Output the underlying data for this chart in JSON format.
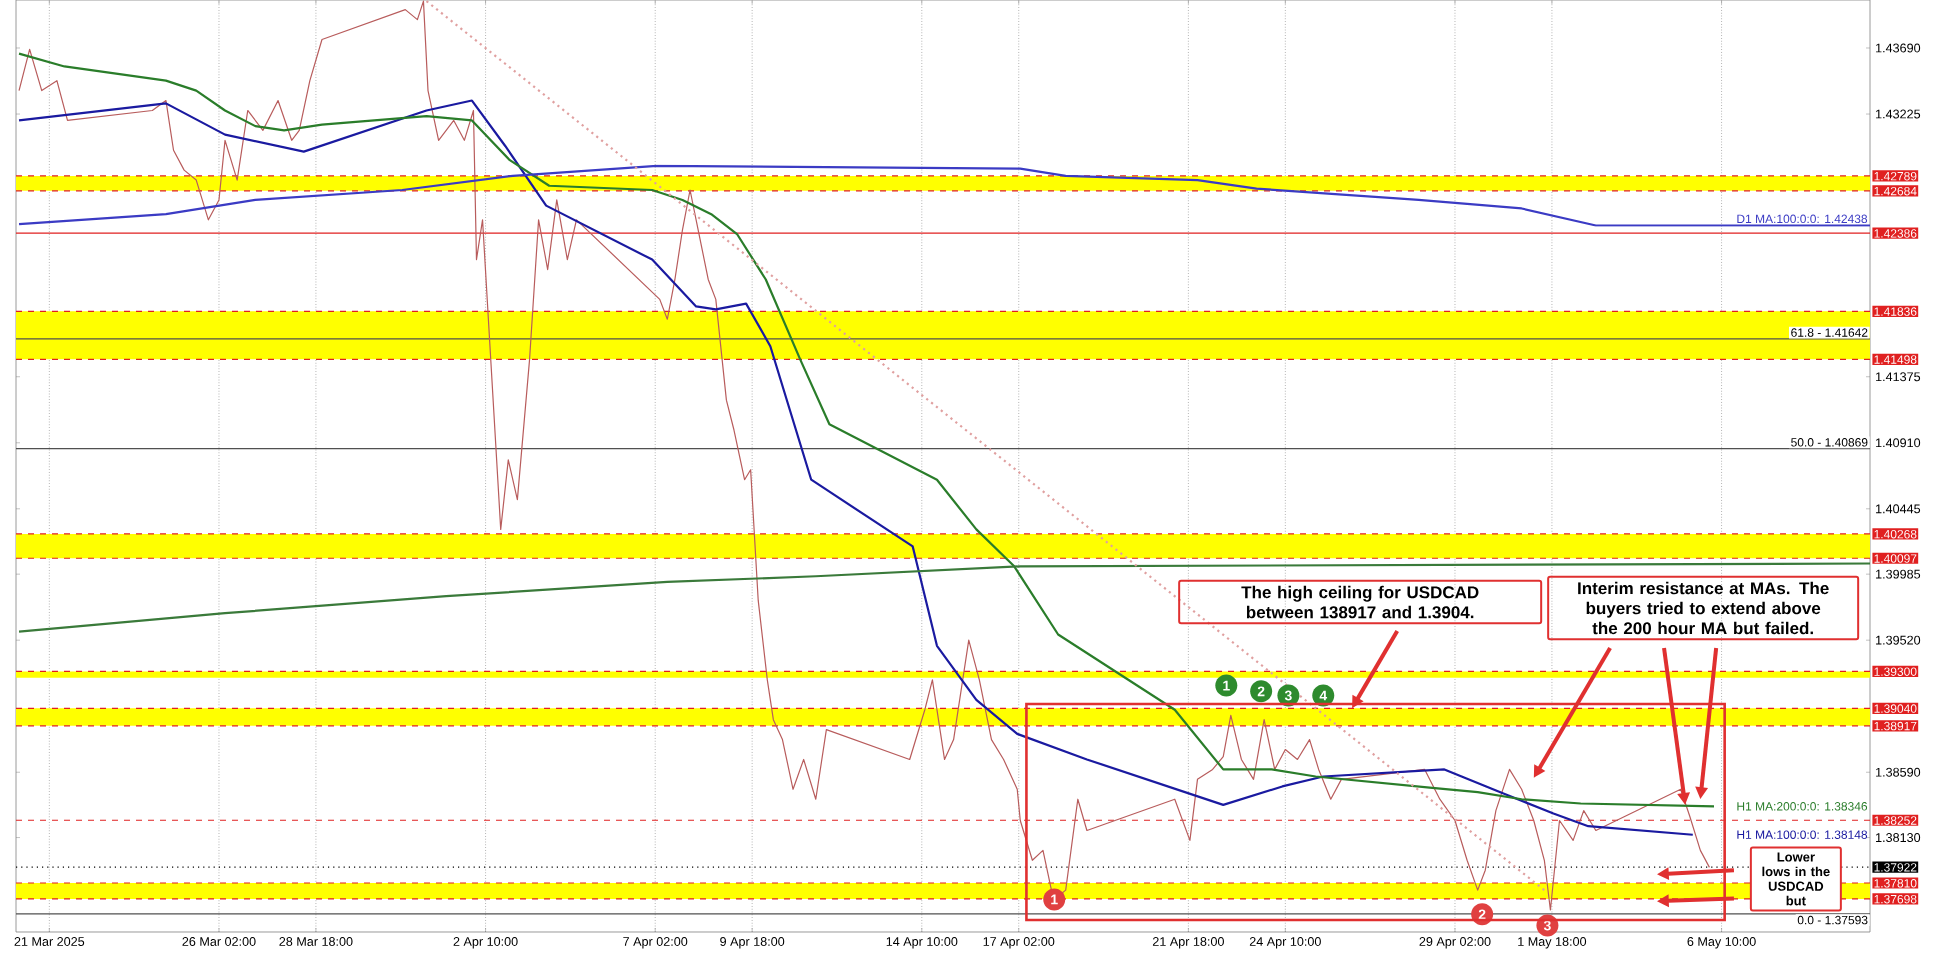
{
  "chart_data": {
    "type": "line",
    "xlim": [
      "2025-03-20T12:00",
      "2025-05-10T12:00"
    ],
    "ylim": [
      1.37465,
      1.44028
    ],
    "xticks": [
      {
        "value": "2025-03-21T10:00",
        "label": "21 Mar 2025"
      },
      {
        "value": "2025-03-26T02:00",
        "label": "26 Mar 02:00"
      },
      {
        "value": "2025-03-28T18:00",
        "label": "28 Mar 18:00"
      },
      {
        "value": "2025-04-02T10:00",
        "label": "2 Apr 10:00"
      },
      {
        "value": "2025-04-07T02:00",
        "label": "7 Apr 02:00"
      },
      {
        "value": "2025-04-09T18:00",
        "label": "9 Apr 18:00"
      },
      {
        "value": "2025-04-14T10:00",
        "label": "14 Apr 10:00"
      },
      {
        "value": "2025-04-17T02:00",
        "label": "17 Apr 02:00"
      },
      {
        "value": "2025-04-21T18:00",
        "label": "21 Apr 18:00"
      },
      {
        "value": "2025-04-24T10:00",
        "label": "24 Apr 10:00"
      },
      {
        "value": "2025-04-29T02:00",
        "label": "29 Apr 02:00"
      },
      {
        "value": "2025-05-01T18:00",
        "label": "1 May 18:00"
      },
      {
        "value": "2025-05-06T10:00",
        "label": "6 May 10:00"
      }
    ],
    "yticks": [
      {
        "value": 1.4369,
        "label": "1.43690"
      },
      {
        "value": 1.43225,
        "label": "1.43225"
      },
      {
        "value": 1.41375,
        "label": "1.41375"
      },
      {
        "value": 1.4091,
        "label": "1.40910"
      },
      {
        "value": 1.40445,
        "label": "1.40445"
      },
      {
        "value": 1.39985,
        "label": "1.39985"
      },
      {
        "value": 1.3952,
        "label": "1.39520"
      },
      {
        "value": 1.3859,
        "label": "1.38590"
      },
      {
        "value": 1.3813,
        "label": "1.38130"
      }
    ],
    "grid": "x",
    "series": [
      {
        "color": "#b85c5c",
        "x": [
          "2025-03-20T14:00",
          "2025-03-20T21:00",
          "2025-03-21T05:00",
          "2025-03-21T15:00",
          "2025-03-21T22:00",
          "2025-03-24T06:00",
          "2025-03-24T15:00",
          "2025-03-24T20:00",
          "2025-03-25T03:00",
          "2025-03-25T11:00",
          "2025-03-25T19:00",
          "2025-03-26T02:00",
          "2025-03-26T06:00",
          "2025-03-26T14:00",
          "2025-03-26T21:00",
          "2025-03-27T07:00",
          "2025-03-27T17:00",
          "2025-03-28T02:00",
          "2025-03-28T07:00",
          "2025-03-28T14:00",
          "2025-03-28T22:00",
          "2025-03-31T05:00",
          "2025-03-31T13:00",
          "2025-03-31T17:00",
          "2025-03-31T20:00",
          "2025-04-01T03:00",
          "2025-04-01T13:00",
          "2025-04-01T20:00",
          "2025-04-02T02:00",
          "2025-04-02T04:00",
          "2025-04-02T08:00",
          "2025-04-02T15:00",
          "2025-04-02T20:00",
          "2025-04-03T01:00",
          "2025-04-03T07:00",
          "2025-04-03T15:00",
          "2025-04-03T21:00",
          "2025-04-04T03:00",
          "2025-04-04T09:00",
          "2025-04-04T16:00",
          "2025-04-04T22:00",
          "2025-04-07T05:00",
          "2025-04-07T10:00",
          "2025-04-07T15:00",
          "2025-04-07T20:00",
          "2025-04-08T01:00",
          "2025-04-08T05:00",
          "2025-04-08T13:00",
          "2025-04-08T18:00",
          "2025-04-09T01:00",
          "2025-04-09T06:00",
          "2025-04-09T13:00",
          "2025-04-09T17:00",
          "2025-04-09T22:00",
          "2025-04-10T04:00",
          "2025-04-10T08:00",
          "2025-04-10T14:00",
          "2025-04-10T21:00",
          "2025-04-11T04:00",
          "2025-04-11T12:00",
          "2025-04-11T19:00",
          "2025-04-14T02:00",
          "2025-04-14T12:00",
          "2025-04-14T17:00",
          "2025-04-15T01:00",
          "2025-04-15T07:00",
          "2025-04-15T12:00",
          "2025-04-15T17:00",
          "2025-04-16T00:00",
          "2025-04-16T08:00",
          "2025-04-16T16:00",
          "2025-04-17T01:00",
          "2025-04-17T03:00",
          "2025-04-17T11:00",
          "2025-04-17T18:00",
          "2025-04-18T01:00",
          "2025-04-18T09:00",
          "2025-04-18T17:00",
          "2025-04-18T23:00",
          "2025-04-21T09:00",
          "2025-04-21T19:00",
          "2025-04-22T00:00",
          "2025-04-22T10:00",
          "2025-04-22T17:00",
          "2025-04-22T22:00",
          "2025-04-23T05:00",
          "2025-04-23T13:00",
          "2025-04-23T20:00",
          "2025-04-24T03:00",
          "2025-04-24T10:00",
          "2025-04-24T18:00",
          "2025-04-25T02:00",
          "2025-04-25T08:00",
          "2025-04-25T16:00",
          "2025-04-25T23:00",
          "2025-04-28T06:00",
          "2025-04-28T16:00",
          "2025-04-29T02:00",
          "2025-04-29T10:00",
          "2025-04-29T17:00",
          "2025-04-29T22:00",
          "2025-04-30T05:00",
          "2025-04-30T14:00",
          "2025-04-30T22:00",
          "2025-05-01T06:00",
          "2025-05-01T13:00",
          "2025-05-01T17:00",
          "2025-05-01T23:00",
          "2025-05-02T08:00",
          "2025-05-02T15:00",
          "2025-05-02T23:00",
          "2025-05-05T07:00",
          "2025-05-05T13:00",
          "2025-05-05T20:00",
          "2025-05-06T02:00"
        ],
        "values": [
          1.4339,
          1.4368,
          1.4339,
          1.4346,
          1.4318,
          1.4325,
          1.4332,
          1.4297,
          1.4283,
          1.4276,
          1.4248,
          1.4262,
          1.4304,
          1.4276,
          1.4325,
          1.4311,
          1.4332,
          1.4304,
          1.4311,
          1.4346,
          1.4375,
          1.4396,
          1.4389,
          1.4402,
          1.4339,
          1.4304,
          1.4318,
          1.4304,
          1.4325,
          1.422,
          1.4248,
          1.4121,
          1.403,
          1.4079,
          1.4051,
          1.4149,
          1.4248,
          1.4213,
          1.4262,
          1.422,
          1.4248,
          1.4192,
          1.4178,
          1.4206,
          1.4241,
          1.4269,
          1.4248,
          1.4206,
          1.4192,
          1.4121,
          1.41,
          1.4065,
          1.4072,
          1.398,
          1.3924,
          1.3896,
          1.3882,
          1.3847,
          1.3868,
          1.384,
          1.3889,
          1.3868,
          1.3903,
          1.3924,
          1.3868,
          1.3882,
          1.3917,
          1.3952,
          1.3924,
          1.3882,
          1.3868,
          1.3847,
          1.3825,
          1.3797,
          1.3804,
          1.3769,
          1.3776,
          1.384,
          1.3818,
          1.384,
          1.3811,
          1.3854,
          1.3861,
          1.387,
          1.3899,
          1.3868,
          1.3854,
          1.3896,
          1.3861,
          1.3875,
          1.3868,
          1.3882,
          1.3861,
          1.384,
          1.3854,
          1.3861,
          1.384,
          1.3825,
          1.3797,
          1.3776,
          1.379,
          1.3832,
          1.3861,
          1.3847,
          1.3825,
          1.3797,
          1.3762,
          1.3825,
          1.3811,
          1.3832,
          1.3818,
          1.3847,
          1.3828,
          1.3804,
          1.3792
        ]
      },
      {
        "name": "H1 MA:100:0:0: 1.38148",
        "color": "#1a1aa0",
        "x": [
          "2025-03-20T14:00",
          "2025-03-24T15:00",
          "2025-03-26T06:00",
          "2025-03-28T10:00",
          "2025-03-31T19:00",
          "2025-04-02T01:00",
          "2025-04-02T23:00",
          "2025-04-04T02:00",
          "2025-04-07T00:00",
          "2025-04-08T05:00",
          "2025-04-08T18:00",
          "2025-04-09T14:00",
          "2025-04-10T06:00",
          "2025-04-11T09:00",
          "2025-04-14T04:00",
          "2025-04-14T20:00",
          "2025-04-15T22:00",
          "2025-04-17T01:00",
          "2025-04-18T23:00",
          "2025-04-22T17:00",
          "2025-04-24T08:00",
          "2025-04-25T11:00",
          "2025-04-28T19:00",
          "2025-04-30T10:00",
          "2025-05-01T19:00",
          "2025-05-02T18:00",
          "2025-05-05T15:00"
        ],
        "values": [
          1.4318,
          1.433,
          1.4308,
          1.4296,
          1.4325,
          1.4332,
          1.43,
          1.4258,
          1.422,
          1.4187,
          1.4185,
          1.4189,
          1.4159,
          1.4065,
          1.4018,
          1.3948,
          1.391,
          1.3886,
          1.3868,
          1.3836,
          1.3849,
          1.3856,
          1.3861,
          1.3844,
          1.383,
          1.3821,
          1.3815
        ]
      },
      {
        "name": "H1 MA:200:0:0: 1.38346",
        "color": "#2a7d2a",
        "x": [
          "2025-03-20T14:00",
          "2025-03-21T20:00",
          "2025-03-24T15:00",
          "2025-03-25T11:00",
          "2025-03-26T06:00",
          "2025-03-27T02:00",
          "2025-03-27T21:00",
          "2025-03-28T22:00",
          "2025-03-31T19:00",
          "2025-04-02T01:00",
          "2025-04-03T02:00",
          "2025-04-04T04:00",
          "2025-04-07T00:00",
          "2025-04-07T20:00",
          "2025-04-08T15:00",
          "2025-04-09T08:00",
          "2025-04-10T03:00",
          "2025-04-11T02:00",
          "2025-04-11T21:00",
          "2025-04-14T20:00",
          "2025-04-15T22:00",
          "2025-04-16T23:00",
          "2025-04-18T04:00",
          "2025-04-21T09:00",
          "2025-04-22T17:00",
          "2025-04-24T01:00",
          "2025-04-25T06:00",
          "2025-04-28T11:00",
          "2025-04-29T17:00",
          "2025-04-30T22:00",
          "2025-05-02T13:00",
          "2025-05-06T05:00"
        ],
        "values": [
          1.4365,
          1.4356,
          1.4346,
          1.4339,
          1.4325,
          1.4314,
          1.4311,
          1.4315,
          1.4321,
          1.4318,
          1.429,
          1.4272,
          1.4269,
          1.4262,
          1.4252,
          1.4238,
          1.4206,
          1.4149,
          1.4104,
          1.4065,
          1.403,
          1.4004,
          1.3956,
          1.3903,
          1.3861,
          1.3861,
          1.3856,
          1.3848,
          1.3845,
          1.384,
          1.3837,
          1.3835
        ]
      },
      {
        "name": "D1 MA:100:0:0: 1.42438",
        "color": "#3b3bc4",
        "x": [
          "2025-03-20T14:00",
          "2025-03-24T15:00",
          "2025-03-27T02:00",
          "2025-03-31T03:00",
          "2025-04-03T04:00",
          "2025-04-07T03:00",
          "2025-04-17T03:00",
          "2025-04-18T09:00",
          "2025-04-22T00:00",
          "2025-04-23T15:00",
          "2025-04-28T02:00",
          "2025-04-30T22:00",
          "2025-05-02T23:00",
          "2025-05-10T12:00"
        ],
        "values": [
          1.4245,
          1.4252,
          1.4262,
          1.4269,
          1.4279,
          1.4286,
          1.4284,
          1.4279,
          1.4276,
          1.427,
          1.4262,
          1.4256,
          1.4244,
          1.4244
        ]
      },
      {
        "color": "#3a7a3a",
        "x": [
          "2025-03-20T14:00",
          "2025-03-26T06:00",
          "2025-04-01T08:00",
          "2025-04-07T10:00",
          "2025-04-11T12:00",
          "2025-04-17T03:00",
          "2025-05-10T12:00"
        ],
        "values": [
          1.3958,
          1.3971,
          1.3983,
          1.3993,
          1.3997,
          1.4004,
          1.4006
        ]
      },
      {
        "color": "#e0a0a0",
        "line_style": "dotted",
        "x": [
          "2025-03-31T19:00",
          "2025-05-01T13:00"
        ],
        "values": [
          1.4402,
          1.3776
        ]
      }
    ],
    "bands": [
      {
        "axis": "y",
        "from": 1.42684,
        "to": 1.42789,
        "color": "#ffff00"
      },
      {
        "axis": "y",
        "from": 1.41498,
        "to": 1.41836,
        "color": "#ffff00"
      },
      {
        "axis": "y",
        "from": 1.40097,
        "to": 1.40268,
        "color": "#ffff00"
      },
      {
        "axis": "y",
        "from": 1.39255,
        "to": 1.393,
        "color": "#ffff00"
      },
      {
        "axis": "y",
        "from": 1.38917,
        "to": 1.3904,
        "color": "#ffff00"
      },
      {
        "axis": "y",
        "from": 1.37698,
        "to": 1.3781,
        "color": "#ffff00"
      }
    ],
    "ref_lines": [
      {
        "axis": "y",
        "value": 1.42789,
        "label": "1.42789",
        "color": "#e02020",
        "line_style": "dashed"
      },
      {
        "axis": "y",
        "value": 1.42684,
        "label": "1.42684",
        "color": "#e02020",
        "line_style": "dashed"
      },
      {
        "axis": "y",
        "value": 1.42386,
        "label": "1.42386",
        "color": "#e02020",
        "line_style": "solid"
      },
      {
        "axis": "y",
        "value": 1.41836,
        "label": "1.41836",
        "color": "#e02020",
        "line_style": "dashed"
      },
      {
        "axis": "y",
        "value": 1.41498,
        "label": "1.41498",
        "color": "#e02020",
        "line_style": "dashed"
      },
      {
        "axis": "y",
        "value": 1.40268,
        "label": "1.40268",
        "color": "#e02020",
        "line_style": "dashed"
      },
      {
        "axis": "y",
        "value": 1.40097,
        "label": "1.40097",
        "color": "#e02020",
        "line_style": "dashed"
      },
      {
        "axis": "y",
        "value": 1.393,
        "label": "1.39300",
        "color": "#e02020",
        "line_style": "dashed"
      },
      {
        "axis": "y",
        "value": 1.3904,
        "label": "1.39040",
        "color": "#e02020",
        "line_style": "dashed"
      },
      {
        "axis": "y",
        "value": 1.38917,
        "label": "1.38917",
        "color": "#e02020",
        "line_style": "dashed"
      },
      {
        "axis": "y",
        "value": 1.38252,
        "label": "1.38252",
        "color": "#e02020",
        "line_style": "dashed"
      },
      {
        "axis": "y",
        "value": 1.37922,
        "label": "1.37922",
        "color": "#000000",
        "line_style": "dotted"
      },
      {
        "axis": "y",
        "value": 1.3781,
        "label": "1.37810",
        "color": "#e02020",
        "line_style": "dashed"
      },
      {
        "axis": "y",
        "value": 1.37698,
        "label": "1.37698",
        "color": "#e02020",
        "line_style": "dashed"
      },
      {
        "axis": "y",
        "value": 1.41642,
        "color": "#505050",
        "line_style": "solid"
      },
      {
        "axis": "y",
        "value": 1.40869,
        "color": "#505050",
        "line_style": "solid"
      },
      {
        "axis": "y",
        "value": 1.37593,
        "color": "#505050",
        "line_style": "solid"
      }
    ],
    "annotations": [
      {
        "text": "The high ceiling for USDCAD between 138917 and 1.3904.",
        "x": "2025-04-26T06:00",
        "y": 1.3904
      },
      {
        "text": "Interim resistance at MAs. The buyers tried to extend above the 200 hour MA but failed.",
        "x": "2025-05-05T10:00",
        "y": 1.3836
      },
      "Lower lows in the USDCAD but",
      "61.8 - 1.41642",
      "50.0 - 1.40869",
      "0.0 - 1.37593",
      "1",
      "2",
      "3",
      "4",
      "1",
      "2",
      "3"
    ]
  }
}
